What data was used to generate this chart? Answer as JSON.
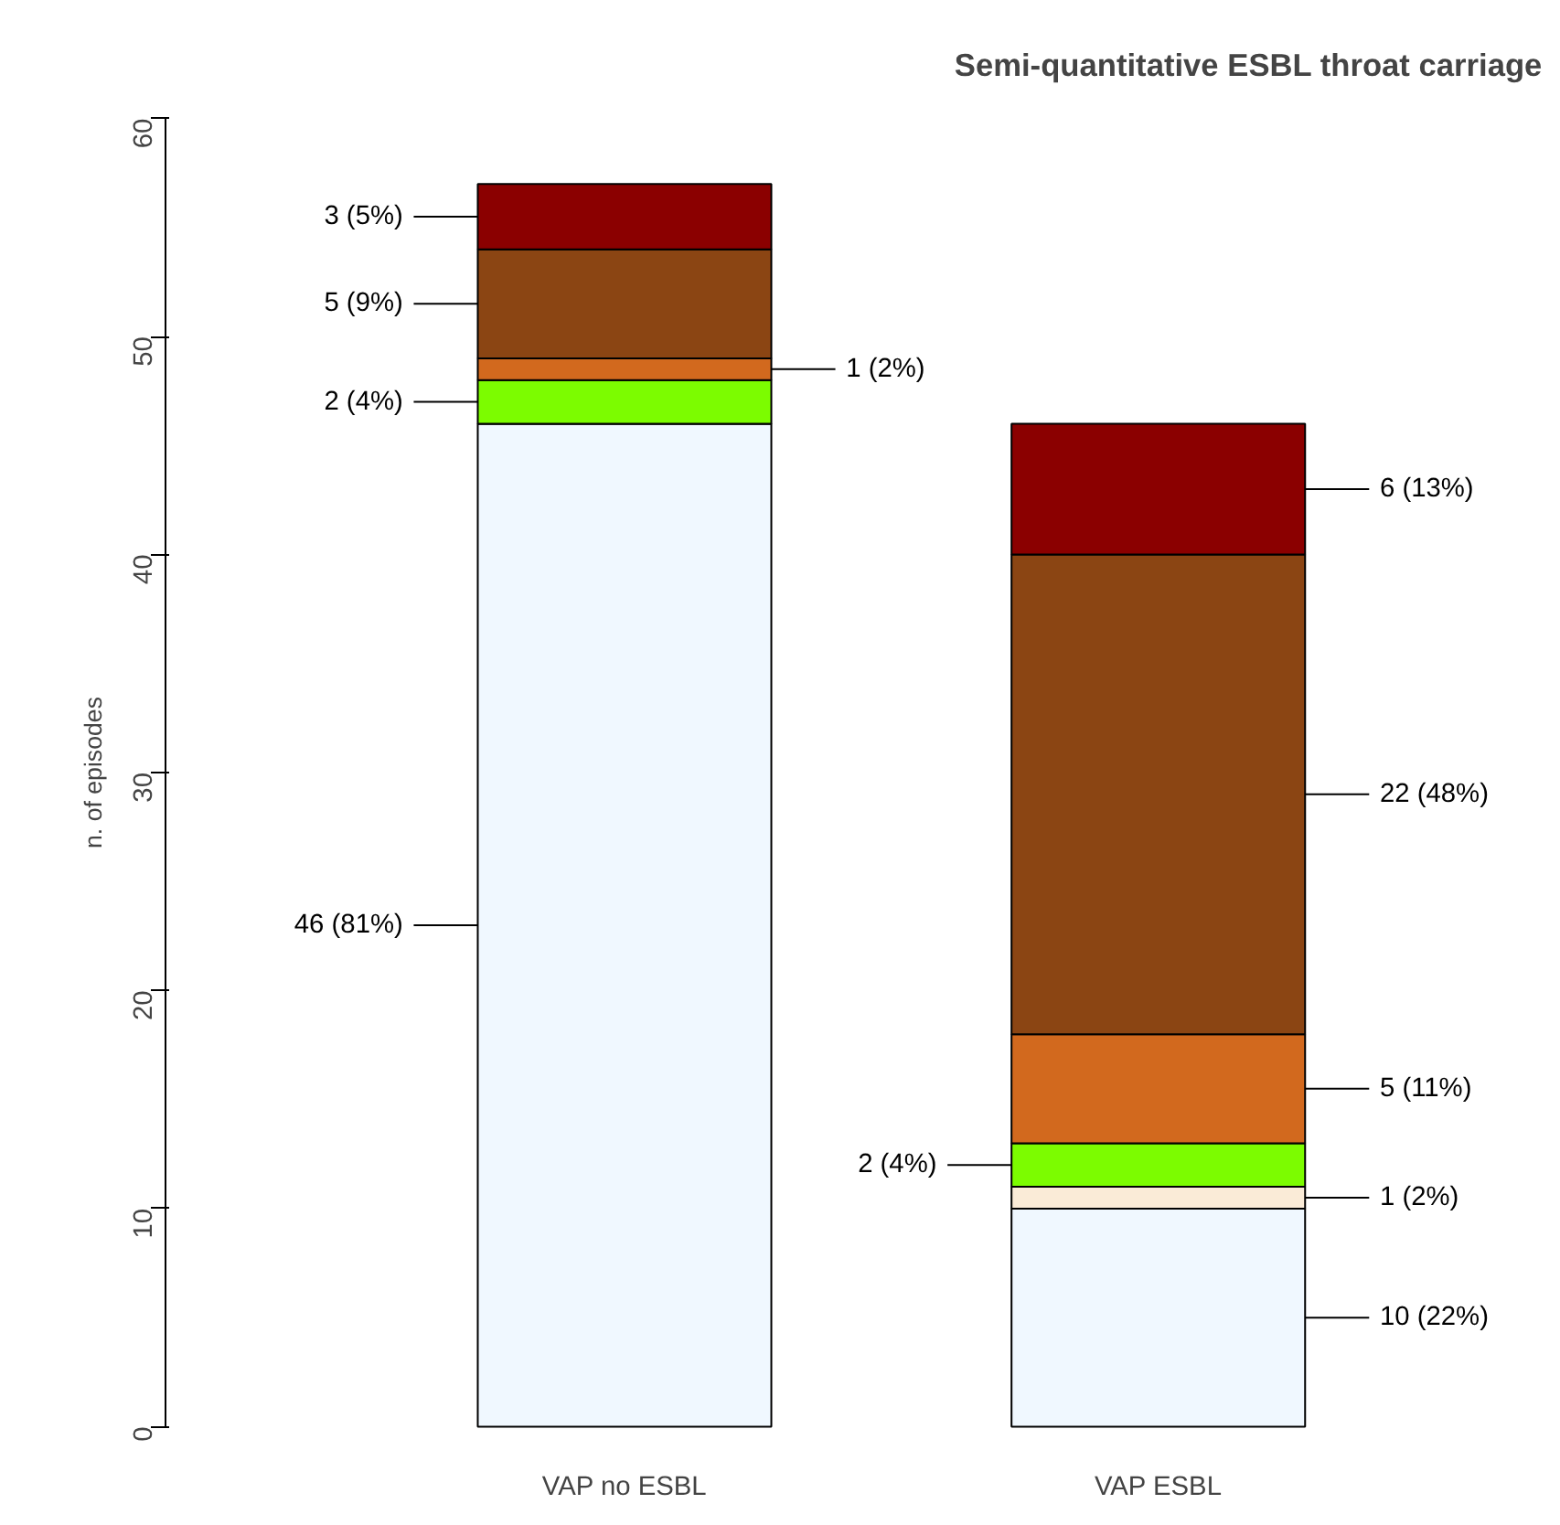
{
  "chart_data": {
    "type": "bar",
    "title": "Semi-quantitative ESBL throat carriage",
    "ylabel": "n. of episodes",
    "categories": [
      "VAP no ESBL",
      "VAP ESBL"
    ],
    "stacked": true,
    "ylim": [
      0,
      60
    ],
    "yticks": [
      0,
      10,
      20,
      30,
      40,
      50,
      60
    ],
    "series": [
      {
        "color": "#f0f8ff",
        "values": [
          46,
          10
        ],
        "value_labels": [
          "46 (81%)",
          "10 (22%)"
        ]
      },
      {
        "color": "#faebd7",
        "values": [
          0,
          1
        ],
        "value_labels": [
          null,
          "1 (2%)"
        ]
      },
      {
        "color": "#7cfc00",
        "values": [
          2,
          2
        ],
        "value_labels": [
          "2 (4%)",
          "2 (4%)"
        ]
      },
      {
        "color": "#d2691e",
        "values": [
          1,
          5
        ],
        "value_labels": [
          "1 (2%)",
          "5 (11%)"
        ]
      },
      {
        "color": "#8b4513",
        "values": [
          5,
          22
        ],
        "value_labels": [
          "5 (9%)",
          "22 (48%)"
        ]
      },
      {
        "color": "#8b0000",
        "values": [
          3,
          6
        ],
        "value_labels": [
          "3 (5%)",
          "6 (13%)"
        ]
      }
    ]
  }
}
